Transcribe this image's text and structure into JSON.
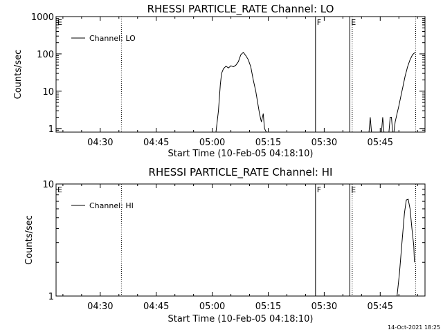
{
  "footer_timestamp": "14-Oct-2021 18:25",
  "chart_data": [
    {
      "type": "line",
      "title": "RHESSI PARTICLE_RATE Channel: LO",
      "xlabel": "Start Time (10-Feb-05 04:18:10)",
      "ylabel": "Counts/sec",
      "yscale": "log",
      "ylim": [
        0.8,
        1000
      ],
      "ytick_values": [
        1,
        10,
        100,
        1000
      ],
      "ytick_labels": [
        "1",
        "10",
        "100",
        "1000"
      ],
      "xlim": [
        "04:18:10",
        "05:57:00"
      ],
      "xtick_values": [
        "04:30",
        "04:45",
        "05:00",
        "05:15",
        "05:30",
        "05:45"
      ],
      "xtick_labels": [
        "04:30",
        "04:45",
        "05:00",
        "05:15",
        "05:30",
        "05:45"
      ],
      "legend": {
        "label": "Channel: LO",
        "placement": "top-left"
      },
      "markers": [
        {
          "time": "04:18:10",
          "style": "none",
          "label": "E"
        },
        {
          "time": "04:35:40",
          "style": "dotted",
          "label": ""
        },
        {
          "time": "05:27:40",
          "style": "solid",
          "label": "F"
        },
        {
          "time": "05:36:50",
          "style": "solid",
          "label": "E"
        },
        {
          "time": "05:37:30",
          "style": "dotted",
          "label": ""
        },
        {
          "time": "05:54:30",
          "style": "dotted",
          "label": ""
        }
      ],
      "series": [
        {
          "segments": [
            [
              [
                "05:01:00",
                0.8
              ],
              [
                "05:01:40",
                3
              ],
              [
                "05:02:10",
                15
              ],
              [
                "05:02:30",
                30
              ],
              [
                "05:03:00",
                40
              ],
              [
                "05:03:40",
                47
              ],
              [
                "05:04:20",
                42
              ],
              [
                "05:05:00",
                48
              ],
              [
                "05:05:40",
                45
              ],
              [
                "05:06:20",
                50
              ],
              [
                "05:07:00",
                62
              ],
              [
                "05:07:40",
                95
              ],
              [
                "05:08:20",
                110
              ],
              [
                "05:09:00",
                90
              ],
              [
                "05:09:40",
                70
              ],
              [
                "05:10:20",
                45
              ],
              [
                "05:11:00",
                20
              ],
              [
                "05:11:40",
                10
              ],
              [
                "05:12:10",
                5
              ],
              [
                "05:12:40",
                2.5
              ],
              [
                "05:13:10",
                1.5
              ],
              [
                "05:13:40",
                2.5
              ],
              [
                "05:14:00",
                1
              ],
              [
                "05:14:30",
                0.8
              ]
            ],
            [
              [
                "05:42:00",
                0.8
              ],
              [
                "05:42:20",
                2
              ],
              [
                "05:42:40",
                0.8
              ]
            ],
            [
              [
                "05:45:20",
                0.8
              ],
              [
                "05:45:40",
                2
              ],
              [
                "05:46:00",
                0.8
              ]
            ],
            [
              [
                "05:47:20",
                0.8
              ],
              [
                "05:47:40",
                2
              ],
              [
                "05:48:00",
                2
              ],
              [
                "05:48:20",
                0.8
              ]
            ],
            [
              [
                "05:48:40",
                0.8
              ],
              [
                "05:49:00",
                1.5
              ],
              [
                "05:49:30",
                2.5
              ],
              [
                "05:50:00",
                4
              ],
              [
                "05:50:30",
                7
              ],
              [
                "05:51:00",
                12
              ],
              [
                "05:51:40",
                25
              ],
              [
                "05:52:20",
                45
              ],
              [
                "05:53:00",
                70
              ],
              [
                "05:53:40",
                95
              ],
              [
                "05:54:20",
                110
              ]
            ]
          ]
        }
      ]
    },
    {
      "type": "line",
      "title": "RHESSI PARTICLE_RATE Channel: HI",
      "xlabel": "Start Time (10-Feb-05 04:18:10)",
      "ylabel": "Counts/sec",
      "yscale": "log",
      "ylim": [
        1,
        10
      ],
      "ytick_values": [
        1,
        10
      ],
      "ytick_labels": [
        "1",
        "10"
      ],
      "xlim": [
        "04:18:10",
        "05:57:00"
      ],
      "xtick_values": [
        "04:30",
        "04:45",
        "05:00",
        "05:15",
        "05:30",
        "05:45"
      ],
      "xtick_labels": [
        "04:30",
        "04:45",
        "05:00",
        "05:15",
        "05:30",
        "05:45"
      ],
      "legend": {
        "label": "Channel: HI",
        "placement": "top-left"
      },
      "markers": [
        {
          "time": "04:18:10",
          "style": "none",
          "label": "E"
        },
        {
          "time": "04:35:40",
          "style": "dotted",
          "label": ""
        },
        {
          "time": "05:27:40",
          "style": "solid",
          "label": "F"
        },
        {
          "time": "05:36:50",
          "style": "solid",
          "label": "E"
        },
        {
          "time": "05:37:30",
          "style": "dotted",
          "label": ""
        },
        {
          "time": "05:54:30",
          "style": "dotted",
          "label": ""
        }
      ],
      "series": [
        {
          "segments": [
            [
              [
                "05:49:30",
                1
              ],
              [
                "05:50:10",
                1.6
              ],
              [
                "05:50:50",
                3
              ],
              [
                "05:51:30",
                5.5
              ],
              [
                "05:52:00",
                7.2
              ],
              [
                "05:52:30",
                7.3
              ],
              [
                "05:53:00",
                6
              ],
              [
                "05:53:30",
                4
              ],
              [
                "05:54:00",
                2.8
              ],
              [
                "05:54:10",
                2
              ]
            ]
          ]
        }
      ]
    }
  ]
}
